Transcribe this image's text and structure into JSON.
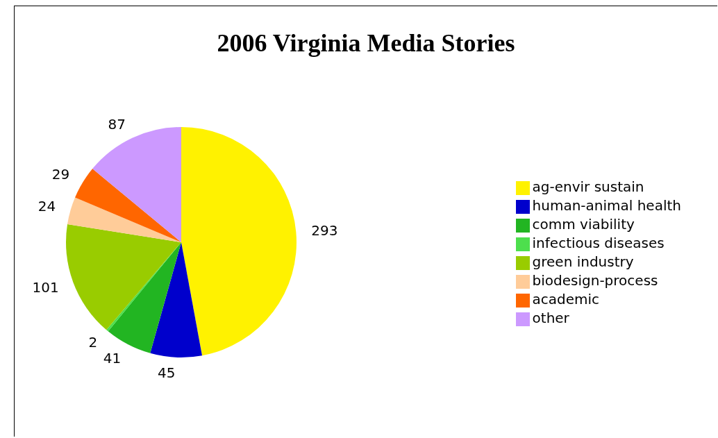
{
  "chart_data": {
    "type": "pie",
    "title": "2006 Virginia Media Stories",
    "categories": [
      "ag-envir sustain",
      "human-animal health",
      "comm viability",
      "infectious diseases",
      "green industry",
      "biodesign-process",
      "academic",
      "other"
    ],
    "values": [
      293,
      45,
      41,
      2,
      101,
      24,
      29,
      87
    ],
    "colors": [
      "#fff200",
      "#0000cc",
      "#22b522",
      "#4ddf4d",
      "#99cc00",
      "#ffcc99",
      "#ff6600",
      "#cc99ff"
    ],
    "data_labels": true,
    "legend": "right"
  }
}
